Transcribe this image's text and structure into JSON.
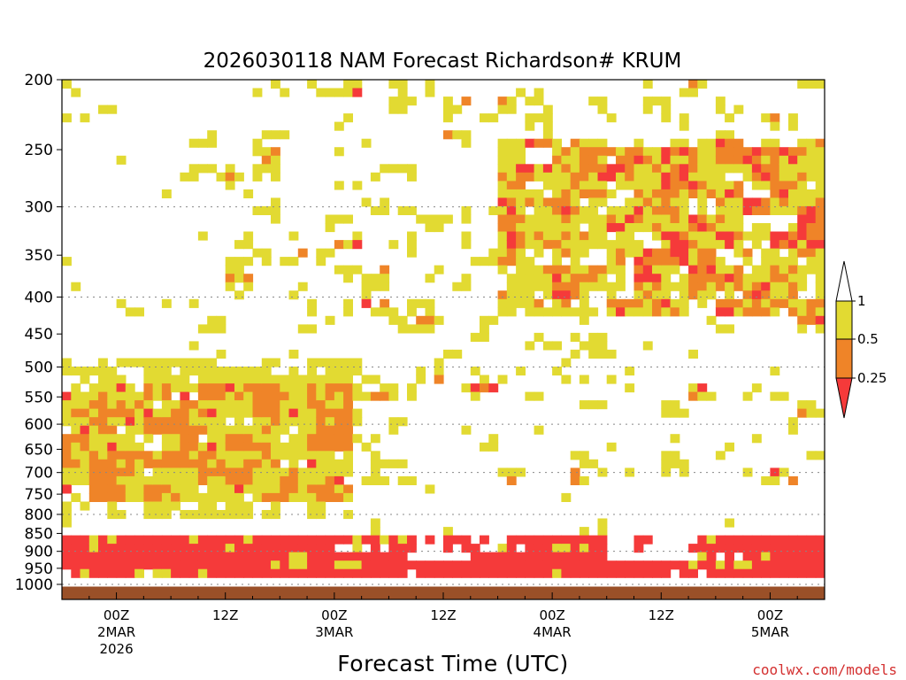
{
  "chart_data": {
    "type": "heatmap",
    "title": "2026030118 NAM Forecast Richardson# KRUM",
    "xlabel": "Forecast Time (UTC)",
    "ylabel": "",
    "credit": "coolwx.com/models",
    "x_unit": "forecast hour from 2026-03-01 18Z",
    "xlim": [
      0,
      84
    ],
    "y_axis_scale": "log-pressure",
    "ylim": [
      1000,
      200
    ],
    "y_ticks": [
      200,
      250,
      300,
      350,
      400,
      450,
      500,
      550,
      600,
      650,
      700,
      750,
      800,
      850,
      900,
      950,
      1000
    ],
    "y_tick_labels": [
      "200",
      "250",
      "300",
      "350",
      "400",
      "450",
      "500",
      "550",
      "600",
      "650",
      "700",
      "750",
      "800",
      "850",
      "900",
      "950",
      "1000"
    ],
    "x_ticks": [
      {
        "hour": 6,
        "lines": [
          "00Z",
          "2MAR",
          "2026"
        ]
      },
      {
        "hour": 18,
        "lines": [
          "12Z"
        ]
      },
      {
        "hour": 30,
        "lines": [
          "00Z",
          "3MAR"
        ]
      },
      {
        "hour": 42,
        "lines": [
          "12Z"
        ]
      },
      {
        "hour": 54,
        "lines": [
          "00Z",
          "4MAR"
        ]
      },
      {
        "hour": 66,
        "lines": [
          "12Z"
        ]
      },
      {
        "hour": 78,
        "lines": [
          "00Z",
          "5MAR"
        ]
      }
    ],
    "grid": "horizontal dotted at 300, 400, 500, 600, 700, 800, 900, 1000 hPa",
    "surface_pressure_hPa": 1005,
    "colorbar": {
      "position": "right",
      "levels": [
        0.25,
        0.5,
        1
      ],
      "labels": [
        "1",
        "0.5",
        "0.25"
      ],
      "bins": [
        {
          "range": "< 0.25",
          "color": "#f53a3a"
        },
        {
          "range": "0.25-0.5",
          "color": "#ef8428"
        },
        {
          "range": "0.5-1",
          "color": "#e2da32"
        },
        {
          "range": "> 1",
          "color": "#ffffff"
        }
      ],
      "ground_color": "#9a5028"
    },
    "regions": [
      {
        "bin": "<0.25",
        "note": "persistent low-level band",
        "x": [
          0,
          84
        ],
        "p": [
          840,
          960
        ]
      },
      {
        "bin": "0.25-0.5",
        "note": "mid-level layer",
        "x": [
          0,
          30
        ],
        "p": [
          550,
          760
        ]
      },
      {
        "bin": "0.5-1",
        "note": "mid-level layer",
        "x": [
          0,
          30
        ],
        "p": [
          480,
          800
        ]
      },
      {
        "bin": "<0.25",
        "note": "upper-level patches",
        "x": [
          50,
          84
        ],
        "p": [
          260,
          420
        ]
      },
      {
        "bin": "0.25-0.5",
        "note": "upper-level patches",
        "x": [
          48,
          84
        ],
        "p": [
          240,
          420
        ]
      },
      {
        "bin": "0.5-1",
        "note": "scattered upper/mid patches",
        "x": [
          15,
          84
        ],
        "p": [
          200,
          700
        ]
      }
    ]
  }
}
